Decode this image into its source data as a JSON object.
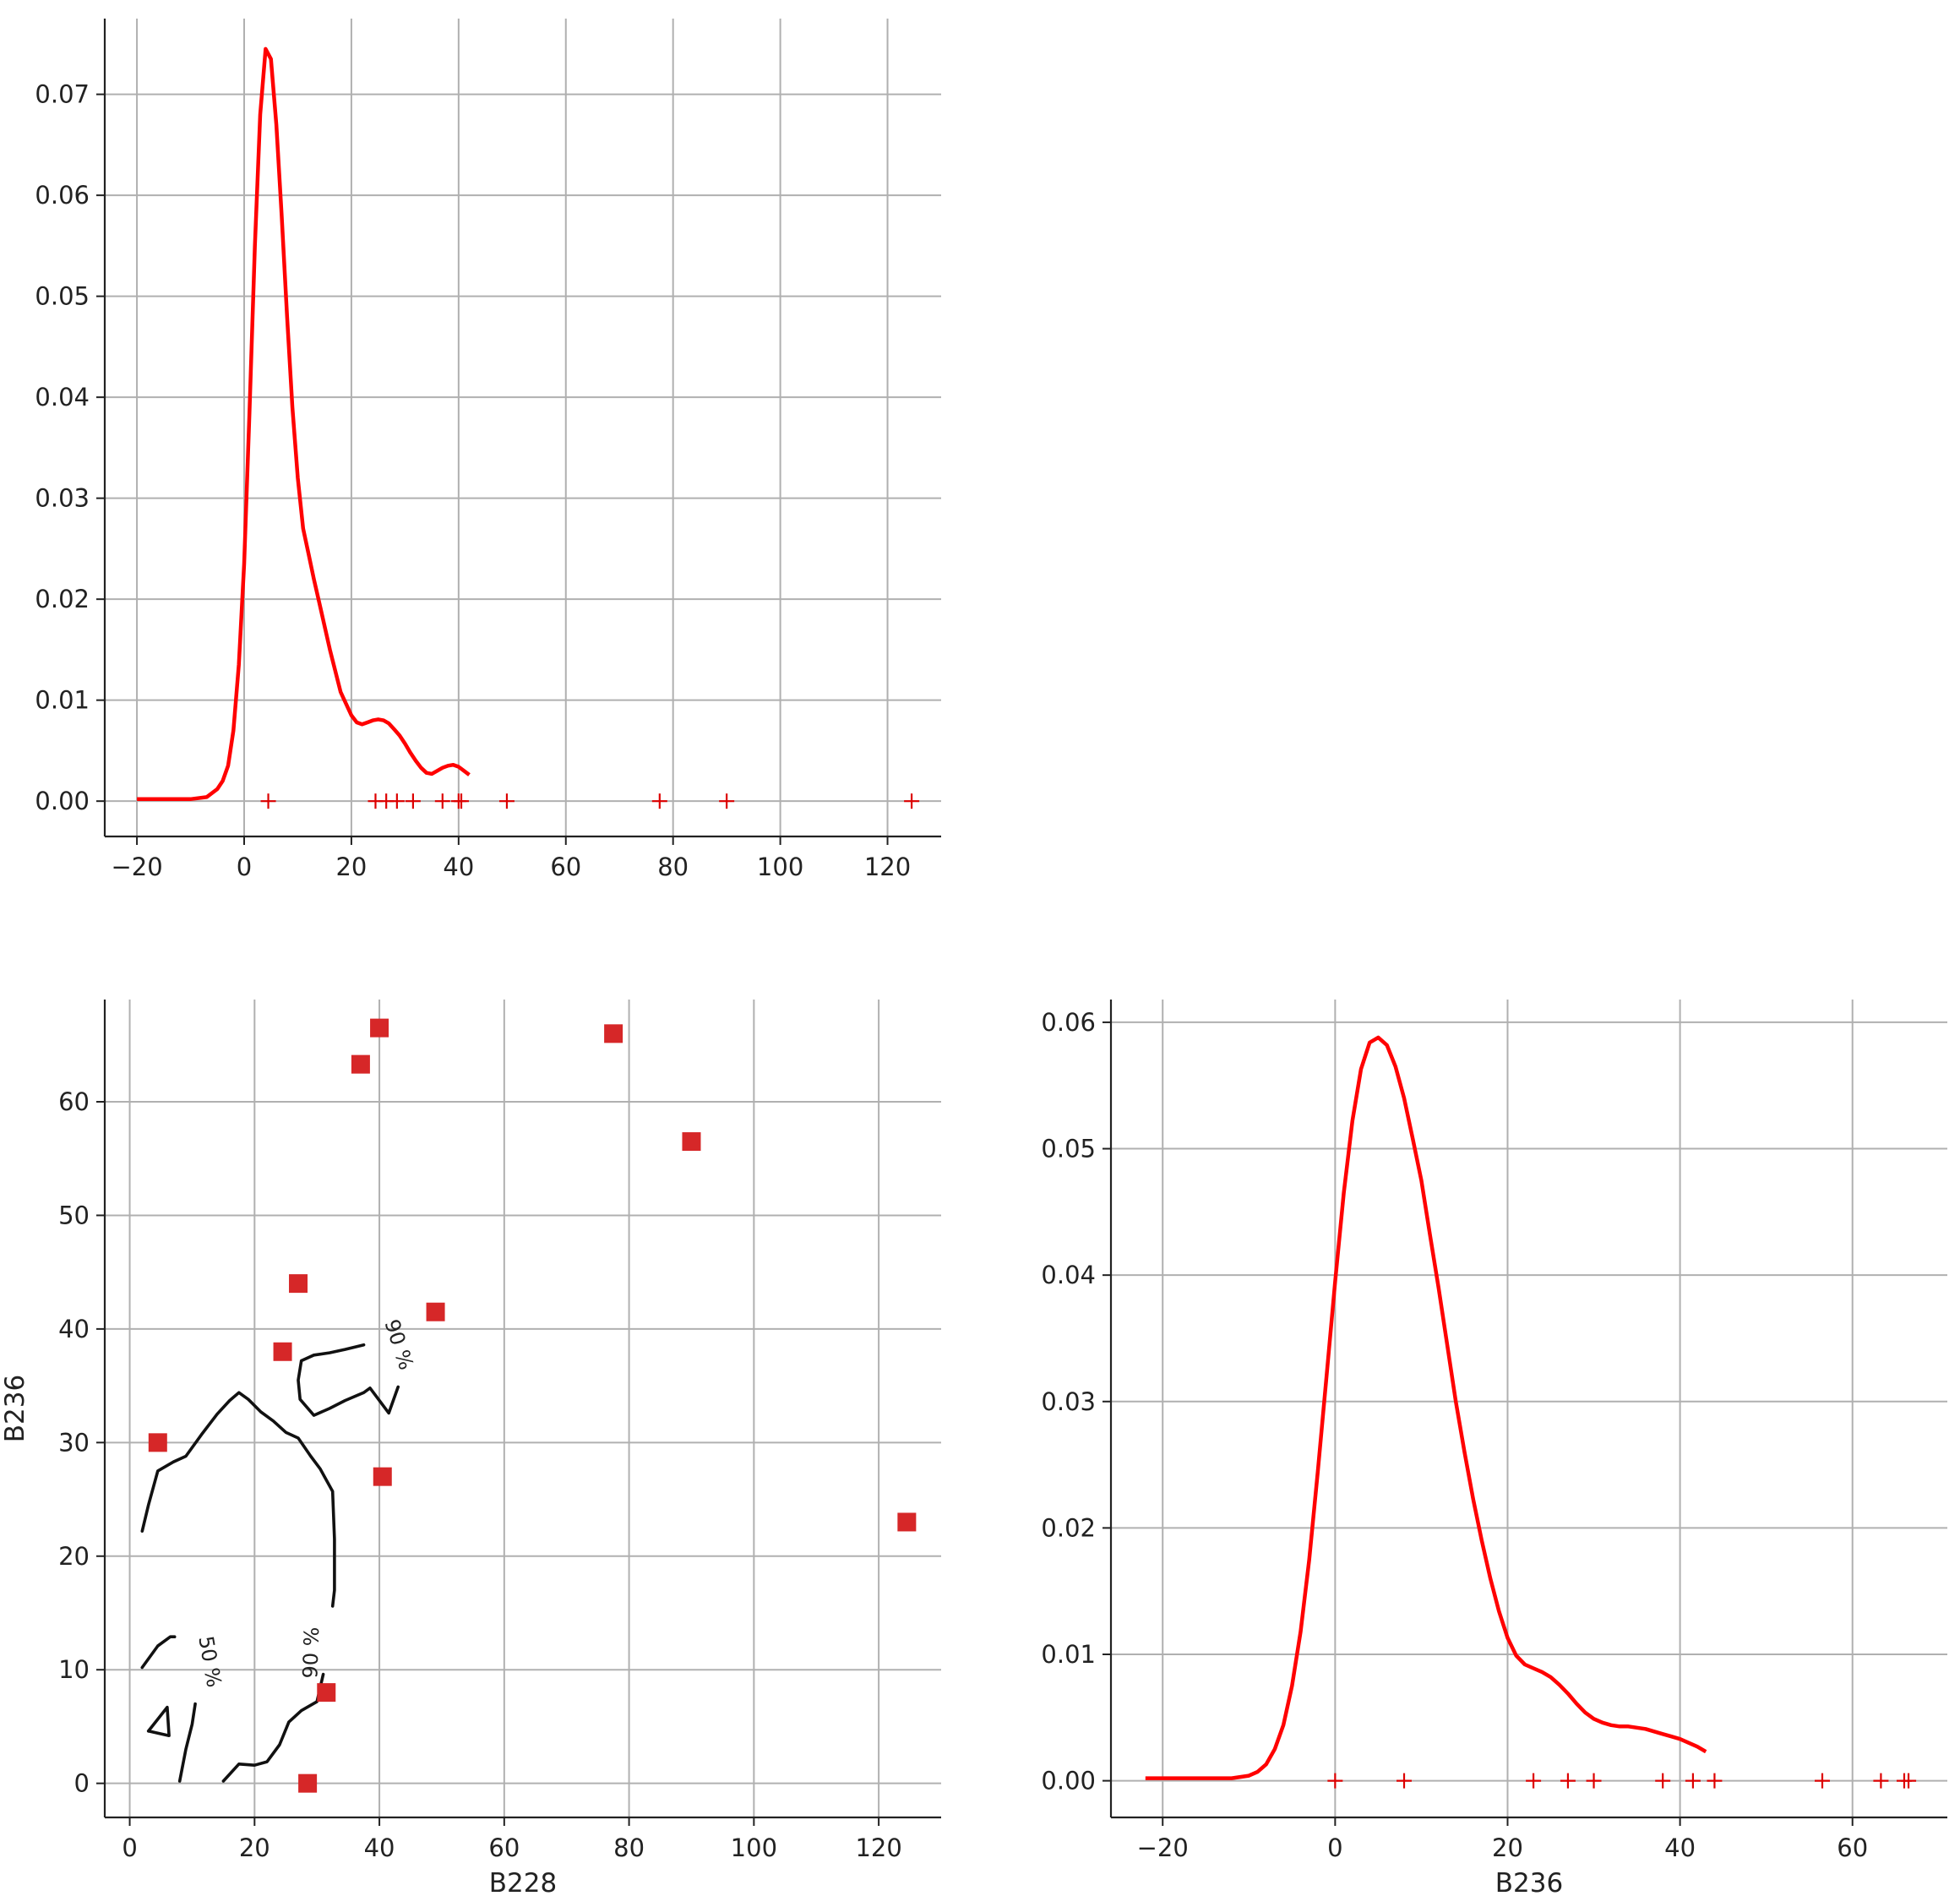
{
  "colors": {
    "kde": "#ff0000",
    "scatter": "#d62728",
    "rug": "#dd0000",
    "contour": "#111111",
    "grid": "#b0b0b0"
  },
  "chart_data": [
    {
      "id": "kde-b228",
      "type": "line",
      "title": "",
      "xlabel": "",
      "ylabel": "",
      "xlim": [
        -26,
        130
      ],
      "ylim": [
        -0.0035,
        0.0775
      ],
      "xticks": [
        -20,
        0,
        20,
        40,
        60,
        80,
        100,
        120
      ],
      "yticks": [
        0.0,
        0.01,
        0.02,
        0.03,
        0.04,
        0.05,
        0.06,
        0.07
      ],
      "ytick_decimals": 2,
      "grid": true,
      "series": [
        {
          "x": [
            -20,
            -10,
            -7,
            -5,
            -4,
            -3,
            -2,
            -1,
            0,
            1,
            2,
            3,
            4,
            5,
            6,
            7,
            8,
            9,
            10,
            11,
            12,
            13,
            14,
            16,
            18,
            20,
            21,
            22,
            23,
            24,
            25,
            26,
            27,
            28,
            29,
            30,
            31,
            32,
            33,
            34,
            35,
            36,
            37,
            38,
            39,
            40,
            41,
            42
          ],
          "y": [
            0.0002,
            0.0002,
            0.0004,
            0.0012,
            0.002,
            0.0035,
            0.007,
            0.0135,
            0.0235,
            0.0385,
            0.055,
            0.068,
            0.0745,
            0.0735,
            0.067,
            0.058,
            0.048,
            0.039,
            0.032,
            0.027,
            0.0245,
            0.022,
            0.0197,
            0.015,
            0.0108,
            0.0085,
            0.0078,
            0.0076,
            0.0078,
            0.008,
            0.0081,
            0.008,
            0.0077,
            0.0071,
            0.0065,
            0.0057,
            0.0048,
            0.004,
            0.0033,
            0.0028,
            0.0027,
            0.003,
            0.0033,
            0.0035,
            0.0036,
            0.0034,
            0.003,
            0.0026
          ]
        }
      ],
      "rug": [
        4.5,
        24.5,
        26.5,
        28.5,
        31.5,
        37,
        40,
        40.5,
        49,
        77.5,
        90,
        124.5
      ]
    },
    {
      "id": "scatter-b228-b236",
      "type": "scatter",
      "title": "",
      "xlabel": "B228",
      "ylabel": "B236",
      "xlim": [
        -4,
        130
      ],
      "ylim": [
        -3,
        69
      ],
      "xticks": [
        0,
        20,
        40,
        60,
        80,
        100,
        120
      ],
      "yticks": [
        0,
        10,
        20,
        30,
        40,
        50,
        60
      ],
      "ytick_decimals": 0,
      "grid": true,
      "points": [
        {
          "x": 4.5,
          "y": 30
        },
        {
          "x": 24.5,
          "y": 38
        },
        {
          "x": 27,
          "y": 44
        },
        {
          "x": 37,
          "y": 63.3
        },
        {
          "x": 40,
          "y": 66.5
        },
        {
          "x": 40.5,
          "y": 27
        },
        {
          "x": 49,
          "y": 41.5
        },
        {
          "x": 31.5,
          "y": 8
        },
        {
          "x": 28.5,
          "y": 0
        },
        {
          "x": 77.5,
          "y": 66
        },
        {
          "x": 90,
          "y": 56.5
        },
        {
          "x": 124.5,
          "y": 23
        }
      ],
      "contours": [
        {
          "level": "90 %",
          "points": [
            [
              2,
              22.2
            ],
            [
              3,
              24.5
            ],
            [
              4.5,
              27.5
            ],
            [
              7,
              28.3
            ],
            [
              9,
              28.8
            ],
            [
              11.5,
              30.7
            ],
            [
              14,
              32.5
            ],
            [
              16,
              33.7
            ],
            [
              17.5,
              34.4
            ],
            [
              19,
              33.8
            ],
            [
              21,
              32.7
            ],
            [
              23,
              31.9
            ],
            [
              25,
              30.9
            ],
            [
              27,
              30.4
            ],
            [
              29,
              28.8
            ],
            [
              30.5,
              27.7
            ],
            [
              32.5,
              25.7
            ],
            [
              32.8,
              21.5
            ],
            [
              32.8,
              17
            ],
            [
              32.5,
              15.6
            ]
          ]
        },
        {
          "level": "90 %",
          "points": [
            [
              37.5,
              38.6
            ],
            [
              34.5,
              38.2
            ],
            [
              32,
              37.9
            ],
            [
              29.5,
              37.7
            ],
            [
              27.5,
              37.2
            ],
            [
              27,
              35.5
            ],
            [
              27.3,
              33.8
            ],
            [
              29.5,
              32.4
            ],
            [
              32,
              33
            ],
            [
              34.5,
              33.7
            ],
            [
              37.5,
              34.4
            ],
            [
              38.5,
              34.8
            ],
            [
              41.5,
              32.6
            ],
            [
              43,
              34.9
            ]
          ]
        },
        {
          "level": "90 %",
          "points": [
            [
              15,
              0.2
            ],
            [
              17.5,
              1.7
            ],
            [
              20,
              1.6
            ],
            [
              22,
              1.9
            ],
            [
              24,
              3.4
            ],
            [
              25.5,
              5.4
            ],
            [
              27.5,
              6.4
            ],
            [
              30,
              7.2
            ],
            [
              31,
              9.6
            ]
          ]
        },
        {
          "level": "50 %",
          "points": [
            [
              2,
              10.2
            ],
            [
              4.5,
              12.1
            ],
            [
              6.5,
              12.9
            ],
            [
              7.2,
              12.9
            ]
          ]
        },
        {
          "level": "",
          "points": [
            [
              3,
              4.6
            ],
            [
              6,
              6.7
            ],
            [
              6.3,
              4.2
            ],
            [
              3,
              4.6
            ]
          ]
        },
        {
          "level": "",
          "points": [
            [
              8,
              0.2
            ],
            [
              9,
              3
            ],
            [
              10,
              5.2
            ],
            [
              10.5,
              7
            ]
          ]
        }
      ],
      "contour_labels": [
        {
          "text": "90 %",
          "x": 43,
          "y": 38.6,
          "angle": 72
        },
        {
          "text": "50 %",
          "x": 12.7,
          "y": 10.7,
          "angle": 80
        },
        {
          "text": "90 %",
          "x": 29.2,
          "y": 11.5,
          "angle": -88
        }
      ]
    },
    {
      "id": "kde-b236",
      "type": "line",
      "title": "",
      "xlabel": "B236",
      "ylabel": "",
      "xlim": [
        -26,
        71
      ],
      "ylim": [
        -0.0029,
        0.0618
      ],
      "xticks": [
        -20,
        0,
        20,
        40,
        60
      ],
      "yticks": [
        0.0,
        0.01,
        0.02,
        0.03,
        0.04,
        0.05,
        0.06
      ],
      "ytick_decimals": 2,
      "grid": true,
      "series": [
        {
          "x": [
            -22,
            -12,
            -10,
            -9,
            -8,
            -7,
            -6,
            -5,
            -4,
            -3,
            -2,
            -1,
            0,
            1,
            2,
            3,
            4,
            5,
            6,
            7,
            8,
            9,
            10,
            11,
            12,
            13,
            14,
            15,
            16,
            17,
            18,
            19,
            20,
            21,
            22,
            23,
            24,
            25,
            26,
            27,
            28,
            29,
            30,
            31,
            32,
            33,
            34,
            35,
            36,
            37,
            38,
            39,
            40,
            41,
            42,
            43
          ],
          "y": [
            0.0002,
            0.0002,
            0.0004,
            0.0007,
            0.0013,
            0.0025,
            0.0044,
            0.0075,
            0.0118,
            0.0175,
            0.0245,
            0.032,
            0.0395,
            0.0465,
            0.0522,
            0.0563,
            0.0584,
            0.0588,
            0.0582,
            0.0565,
            0.054,
            0.0508,
            0.0475,
            0.0432,
            0.039,
            0.0345,
            0.03,
            0.026,
            0.0223,
            0.019,
            0.016,
            0.0134,
            0.0113,
            0.0099,
            0.0092,
            0.0089,
            0.0086,
            0.0082,
            0.0076,
            0.0069,
            0.0061,
            0.0054,
            0.0049,
            0.0046,
            0.0044,
            0.0043,
            0.0043,
            0.0042,
            0.0041,
            0.0039,
            0.0037,
            0.0035,
            0.0033,
            0.003,
            0.0027,
            0.0023
          ]
        }
      ],
      "rug": [
        0,
        8,
        23,
        27,
        30,
        38,
        41.5,
        44,
        56.5,
        63.3,
        66,
        66.5
      ]
    }
  ]
}
